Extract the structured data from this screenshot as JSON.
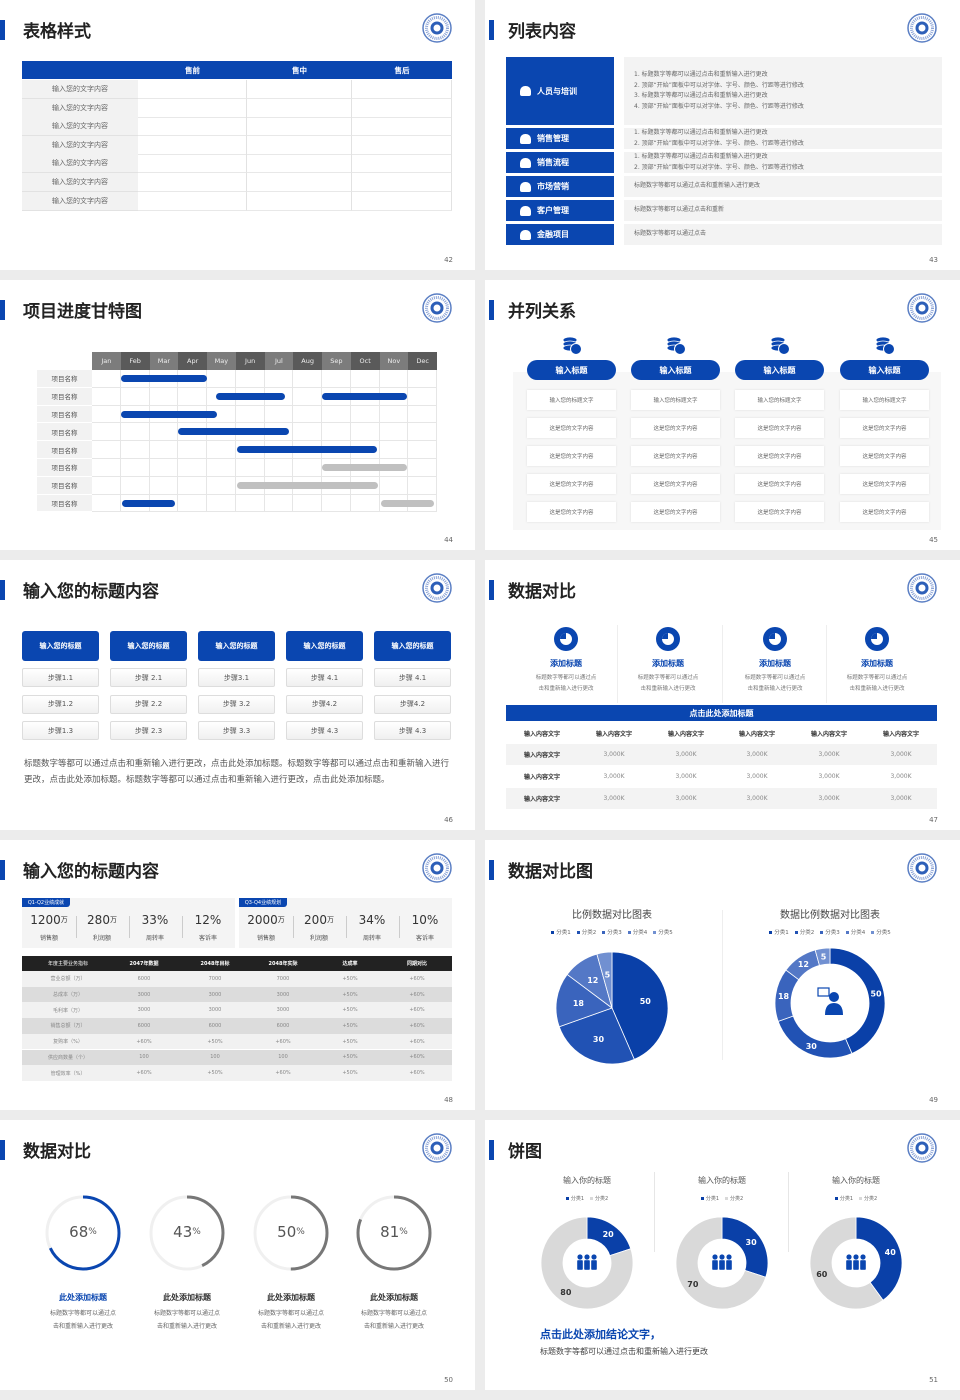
{
  "colors": {
    "accent": "#0a46b0",
    "dark_header": "#222222",
    "gray_bar": "#c0c0c0",
    "panel": "#f3f3f3"
  },
  "s42": {
    "title": "表格样式",
    "page": "42",
    "headers": [
      "",
      "售前",
      "售中",
      "售后"
    ],
    "rows": [
      "输入您的文字内容",
      "输入您的文字内容",
      "输入您的文字内容",
      "输入您的文字内容",
      "输入您的文字内容",
      "输入您的文字内容",
      "输入您的文字内容"
    ]
  },
  "s43": {
    "title": "列表内容",
    "page": "43",
    "items": [
      {
        "label": "人员与培训",
        "icon": "training-icon",
        "lines": [
          "1.   标题数字等都可以通过点击和重新输入进行更改",
          "2.   顶部“开始”面板中可以对字体、字号、颜色、行距等进行修改",
          "3.   标题数字等都可以通过点击和重新输入进行更改",
          "4.   顶部“开始”面板中可以对字体、字号、颜色、行距等进行修改"
        ]
      },
      {
        "label": "销售管理",
        "icon": "sales-manager-icon",
        "lines": [
          "1.   标题数字等都可以通过点击和重新输入进行更改",
          "2.   顶部“开始”面板中可以对字体、字号、颜色、行距等进行修改"
        ]
      },
      {
        "label": "销售流程",
        "icon": "process-cycle-icon",
        "lines": [
          "1.   标题数字等都可以通过点击和重新输入进行更改",
          "2.   顶部“开始”面板中可以对字体、字号、颜色、行距等进行修改"
        ]
      },
      {
        "label": "市场营销",
        "icon": "bar-chart-icon",
        "lines": [
          "标题数字等都可以通过点击和重新输入进行更改"
        ]
      },
      {
        "label": "客户管理",
        "icon": "users-icon",
        "lines": [
          "标题数字等都可以通过点击和重新"
        ]
      },
      {
        "label": "金融项目",
        "icon": "finance-icon",
        "lines": [
          "标题数字等都可以通过点击"
        ]
      }
    ]
  },
  "s44": {
    "title": "项目进度甘特图",
    "page": "44"
  },
  "s45": {
    "title": "并列关系",
    "page": "45",
    "columns": [
      {
        "title": "输入标题",
        "icon": "coins-icon",
        "cells": [
          "输入您的标题文字",
          "这是您的文字内容",
          "这是您的文字内容",
          "这是您的文字内容",
          "这是您的文字内容"
        ]
      },
      {
        "title": "输入标题",
        "icon": "coins-icon",
        "cells": [
          "输入您的标题文字",
          "这是您的文字内容",
          "这是您的文字内容",
          "这是您的文字内容",
          "这是您的文字内容"
        ]
      },
      {
        "title": "输入标题",
        "icon": "coins-icon",
        "cells": [
          "输入您的标题文字",
          "这是您的文字内容",
          "这是您的文字内容",
          "这是您的文字内容",
          "这是您的文字内容"
        ]
      },
      {
        "title": "输入标题",
        "icon": "coins-icon",
        "cells": [
          "输入您的标题文字",
          "这是您的文字内容",
          "这是您的文字内容",
          "这是您的文字内容",
          "这是您的文字内容"
        ]
      }
    ]
  },
  "s46": {
    "title": "输入您的标题内容",
    "page": "46",
    "columns": [
      {
        "title": "输入您的标题",
        "steps": [
          "步骤1.1",
          "步骤1.2",
          "步骤1.3"
        ]
      },
      {
        "title": "输入您的标题",
        "steps": [
          "步骤 2.1",
          "步骤 2.2",
          "步骤 2.3"
        ]
      },
      {
        "title": "输入您的标题",
        "steps": [
          "步骤3.1",
          "步骤 3.2",
          "步骤 3.3"
        ]
      },
      {
        "title": "输入您的标题",
        "steps": [
          "步骤 4.1",
          "步骤4.2",
          "步骤 4.3"
        ]
      },
      {
        "title": "输入您的标题",
        "steps": [
          "步骤 4.1",
          "步骤4.2",
          "步骤 4.3"
        ]
      }
    ],
    "paragraph": "标题数字等都可以通过点击和重新输入进行更改，点击此处添加标题。标题数字等都可以通过点击和重新输入进行更改，点击此处添加标题。标题数字等都可以通过点击和重新输入进行更改，点击此处添加标题。"
  },
  "s47": {
    "title": "数据对比",
    "page": "47",
    "features": [
      {
        "title": "添加标题",
        "icon": "pie-chart-icon",
        "desc": [
          "标题数字等都可以通过点",
          "击和重新输入进行更改"
        ]
      },
      {
        "title": "添加标题",
        "icon": "pie-chart-icon",
        "desc": [
          "标题数字等都可以通过点",
          "击和重新输入进行更改"
        ]
      },
      {
        "title": "添加标题",
        "icon": "pie-chart-icon",
        "desc": [
          "标题数字等都可以通过点",
          "击和重新输入进行更改"
        ]
      },
      {
        "title": "添加标题",
        "icon": "pie-chart-icon",
        "desc": [
          "标题数字等都可以通过点",
          "击和重新输入进行更改"
        ]
      }
    ],
    "bar_title": "点击此处添加标题",
    "table": {
      "headers": [
        "输入内容文字",
        "输入内容文字",
        "输入内容文字",
        "输入内容文字",
        "输入内容文字",
        "输入内容文字"
      ],
      "rows": [
        [
          "输入内容文字",
          "3,000K",
          "3,000K",
          "3,000K",
          "3,000K",
          "3,000K"
        ],
        [
          "输入内容文字",
          "3,000K",
          "3,000K",
          "3,000K",
          "3,000K",
          "3,000K"
        ],
        [
          "输入内容文字",
          "3,000K",
          "3,000K",
          "3,000K",
          "3,000K",
          "3,000K"
        ]
      ]
    }
  },
  "s48": {
    "title": "输入您的标题内容",
    "page": "48",
    "panels": [
      {
        "tag": "Q1-Q2业绩成就",
        "items": [
          {
            "value": "1200",
            "unit": "万",
            "label": "销售额"
          },
          {
            "value": "280",
            "unit": "万",
            "label": "利润额"
          },
          {
            "value": "33%",
            "unit": "",
            "label": "周转率"
          },
          {
            "value": "12%",
            "unit": "",
            "label": "客诉率"
          }
        ]
      },
      {
        "tag": "Q3-Q4业绩规划",
        "items": [
          {
            "value": "2000",
            "unit": "万",
            "label": "销售额"
          },
          {
            "value": "200",
            "unit": "万",
            "label": "利润额"
          },
          {
            "value": "34%",
            "unit": "",
            "label": "周转率"
          },
          {
            "value": "10%",
            "unit": "",
            "label": "客诉率"
          }
        ]
      }
    ],
    "table": {
      "headers": [
        "年度主要业务指标",
        "2047年数据",
        "2048年目标",
        "2048年实际",
        "达成率",
        "同期对比"
      ],
      "rows": [
        [
          "营业总额（万）",
          "6000",
          "7000",
          "7000",
          "+50%",
          "+60%"
        ],
        [
          "总成本（万）",
          "3000",
          "3000",
          "3000",
          "+50%",
          "+60%"
        ],
        [
          "毛利率（万）",
          "3000",
          "3000",
          "3000",
          "+50%",
          "+60%"
        ],
        [
          "销售总额（万）",
          "6000",
          "6000",
          "6000",
          "+50%",
          "+60%"
        ],
        [
          "复购率（%）",
          "+60%",
          "+50%",
          "+60%",
          "+50%",
          "+60%"
        ],
        [
          "供应商数量（个）",
          "100",
          "100",
          "100",
          "+50%",
          "+60%"
        ],
        [
          "管理效率（%）",
          "+60%",
          "+50%",
          "+60%",
          "+50%",
          "+60%"
        ]
      ]
    }
  },
  "s49": {
    "title": "数据对比图",
    "page": "49"
  },
  "s50": {
    "title": "数据对比",
    "page": "50",
    "rings": [
      {
        "value": 68,
        "pct": "68",
        "unit": "%",
        "title": "此处添加标题",
        "desc": [
          "标题数字等都可以通过点",
          "击和重新输入进行更改"
        ],
        "color": "#0a46b0"
      },
      {
        "value": 43,
        "pct": "43",
        "unit": "%",
        "title": "此处添加标题",
        "desc": [
          "标题数字等都可以通过点",
          "击和重新输入进行更改"
        ],
        "color": "#777777"
      },
      {
        "value": 50,
        "pct": "50",
        "unit": "%",
        "title": "此处添加标题",
        "desc": [
          "标题数字等都可以通过点",
          "击和重新输入进行更改"
        ],
        "color": "#777777"
      },
      {
        "value": 81,
        "pct": "81",
        "unit": "%",
        "title": "此处添加标题",
        "desc": [
          "标题数字等都可以通过点",
          "击和重新输入进行更改"
        ],
        "color": "#777777"
      }
    ]
  },
  "s51": {
    "title": "饼图",
    "page": "51",
    "conclusion": "点击此处添加结论文字，",
    "conclusion_desc": "标题数字等都可以通过点击和重新输入进行更改"
  },
  "chart_data": [
    {
      "type": "gantt",
      "months": [
        "Jan",
        "Feb",
        "Mar",
        "Apr",
        "May",
        "Jun",
        "Jul",
        "Aug",
        "Sep",
        "Oct",
        "Nov",
        "Dec"
      ],
      "rows": [
        {
          "label": "项目名称",
          "bars": [
            {
              "start_month": 1.0,
              "end_month": 4.0,
              "status": "active"
            }
          ]
        },
        {
          "label": "项目名称",
          "bars": [
            {
              "start_month": 4.3,
              "end_month": 6.7,
              "status": "active"
            },
            {
              "start_month": 8.0,
              "end_month": 10.95,
              "status": "active"
            }
          ]
        },
        {
          "label": "项目名称",
          "bars": [
            {
              "start_month": 1.0,
              "end_month": 4.35,
              "status": "active"
            }
          ]
        },
        {
          "label": "项目名称",
          "bars": [
            {
              "start_month": 3.0,
              "end_month": 6.85,
              "status": "active"
            }
          ]
        },
        {
          "label": "项目名称",
          "bars": [
            {
              "start_month": 5.05,
              "end_month": 9.9,
              "status": "active"
            }
          ]
        },
        {
          "label": "项目名称",
          "bars": [
            {
              "start_month": 8.0,
              "end_month": 10.95,
              "status": "planned"
            }
          ]
        },
        {
          "label": "项目名称",
          "bars": [
            {
              "start_month": 5.05,
              "end_month": 9.95,
              "status": "planned"
            }
          ]
        },
        {
          "label": "项目名称",
          "bars": [
            {
              "start_month": 1.05,
              "end_month": 2.9,
              "status": "active"
            },
            {
              "start_month": 10.05,
              "end_month": 11.9,
              "status": "planned"
            }
          ]
        }
      ]
    },
    {
      "type": "pie",
      "title": "比例数据对比图表",
      "categories": [
        "分类1",
        "分类2",
        "分类3",
        "分类4",
        "分类5"
      ],
      "values": [
        50,
        30,
        18,
        12,
        5
      ],
      "colors": [
        "#0a40a8",
        "#2152b4",
        "#3a64bd",
        "#5478c6",
        "#7190d1"
      ],
      "legend": "top"
    },
    {
      "type": "donut",
      "title": "数据比例数据对比图表",
      "categories": [
        "分类1",
        "分类2",
        "分类3",
        "分类4",
        "分类5"
      ],
      "values": [
        50,
        30,
        18,
        12,
        5
      ],
      "colors": [
        "#0a40a8",
        "#2152b4",
        "#3a64bd",
        "#5478c6",
        "#7190d1"
      ],
      "legend": "top",
      "center_icon": "customer-service-icon"
    },
    {
      "type": "donut",
      "title": "输入你的标题",
      "categories": [
        "分类1",
        "分类2"
      ],
      "values": [
        20,
        80
      ],
      "colors": [
        "#0a40a8",
        "#d9d9d9"
      ],
      "legend": "top",
      "center_icon": "team-icon"
    },
    {
      "type": "donut",
      "title": "输入你的标题",
      "categories": [
        "分类1",
        "分类2"
      ],
      "values": [
        30,
        70
      ],
      "colors": [
        "#0a40a8",
        "#d9d9d9"
      ],
      "legend": "top",
      "center_icon": "team-icon"
    },
    {
      "type": "donut",
      "title": "输入你的标题",
      "categories": [
        "分类1",
        "分类2"
      ],
      "values": [
        40,
        60
      ],
      "colors": [
        "#0a40a8",
        "#d9d9d9"
      ],
      "legend": "top",
      "center_icon": "team-icon"
    }
  ]
}
